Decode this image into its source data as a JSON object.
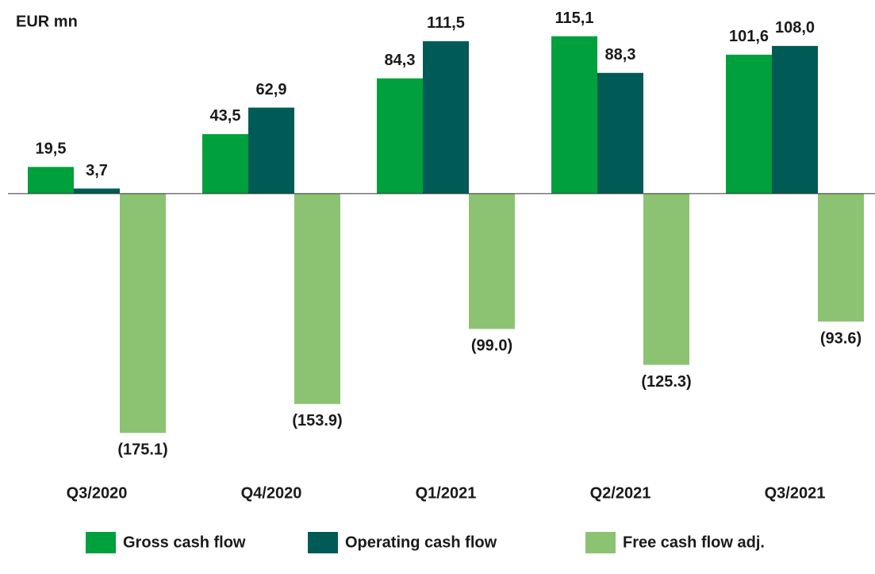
{
  "chart_data": {
    "type": "bar",
    "title": "EUR mn",
    "categories": [
      "Q3/2020",
      "Q4/2020",
      "Q1/2021",
      "Q2/2021",
      "Q3/2021"
    ],
    "series": [
      {
        "name": "Gross cash flow",
        "color": "#00a03c",
        "values": [
          19.5,
          43.5,
          84.3,
          115.1,
          101.6
        ],
        "value_labels": [
          "19,5",
          "43,5",
          "84,3",
          "115,1",
          "101,6"
        ]
      },
      {
        "name": "Operating cash flow",
        "color": "#005a55",
        "values": [
          3.7,
          62.9,
          111.5,
          88.3,
          108.0
        ],
        "value_labels": [
          "3,7",
          "62,9",
          "111,5",
          "88,3",
          "108,0"
        ]
      },
      {
        "name": "Free cash flow adj.",
        "color": "#8cc373",
        "values": [
          -175.1,
          -153.9,
          -99.0,
          -125.3,
          -93.6
        ],
        "value_labels": [
          "(175.1)",
          "(153.9)",
          "(99.0)",
          "(125.3)",
          "(93.6)"
        ]
      }
    ],
    "ylim": [
      -190,
      130
    ]
  }
}
